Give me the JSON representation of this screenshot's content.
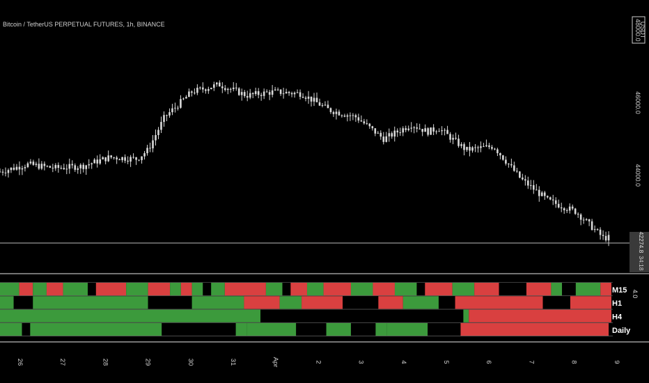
{
  "colors": {
    "background": "#000000",
    "candle": "#d9d9d9",
    "bull": "#3c9a3c",
    "bear": "#d94040",
    "neutral": "#000000",
    "separator": "#9a9a9a",
    "price_line": "#bdbdbd"
  },
  "chart_data": [
    {
      "type": "candlestick",
      "title": "Bitcoin / TetherUS PERPETUAL FUTURES, 1h, BINANCE",
      "currency_badge": "USDT",
      "y_tick_labels": [
        "48000.0",
        "46000.0",
        "44000.0"
      ],
      "ylim": [
        42000,
        48100
      ],
      "x_tick_labels": [
        "26",
        "27",
        "28",
        "29",
        "30",
        "31",
        "Apr",
        "2",
        "3",
        "4",
        "5",
        "6",
        "7",
        "8",
        "9"
      ],
      "last_price_label": "42274.8",
      "countdown_label": "34:18",
      "close_path": [
        [
          0,
          44100
        ],
        [
          1,
          44300
        ],
        [
          2,
          44200
        ],
        [
          3,
          44250
        ],
        [
          4,
          44500
        ],
        [
          5,
          44450
        ],
        [
          5.4,
          44700
        ],
        [
          6,
          45600
        ],
        [
          7,
          46300
        ],
        [
          8,
          46500
        ],
        [
          9,
          46200
        ],
        [
          10,
          46300
        ],
        [
          11,
          46250
        ],
        [
          12,
          45800
        ],
        [
          13,
          45600
        ],
        [
          14,
          45000
        ],
        [
          15,
          45400
        ],
        [
          15.6,
          45200
        ],
        [
          16,
          45300
        ],
        [
          17,
          44700
        ],
        [
          18,
          44800
        ],
        [
          19,
          43900
        ],
        [
          20,
          43300
        ],
        [
          21,
          43000
        ],
        [
          22,
          42280
        ]
      ]
    },
    {
      "type": "heatmap",
      "value_label": "4.0",
      "rows": [
        {
          "label": "M15",
          "segments": [
            [
              0,
              0.7,
              "g"
            ],
            [
              0.7,
              1.2,
              "r"
            ],
            [
              1.2,
              1.7,
              "g"
            ],
            [
              1.7,
              2.3,
              "r"
            ],
            [
              2.3,
              3.2,
              "g"
            ],
            [
              3.2,
              3.5,
              "n"
            ],
            [
              3.5,
              4.6,
              "r"
            ],
            [
              4.6,
              5.4,
              "g"
            ],
            [
              5.4,
              6.2,
              "r"
            ],
            [
              6.2,
              6.6,
              "g"
            ],
            [
              6.6,
              7.0,
              "r"
            ],
            [
              7.0,
              7.4,
              "g"
            ],
            [
              7.4,
              7.7,
              "n"
            ],
            [
              7.7,
              8.2,
              "g"
            ],
            [
              8.2,
              9.7,
              "r"
            ],
            [
              9.7,
              10.3,
              "g"
            ],
            [
              10.3,
              10.6,
              "n"
            ],
            [
              10.6,
              11.2,
              "r"
            ],
            [
              11.2,
              11.8,
              "g"
            ],
            [
              11.8,
              12.8,
              "r"
            ],
            [
              12.8,
              13.6,
              "g"
            ],
            [
              13.6,
              14.4,
              "r"
            ],
            [
              14.4,
              15.2,
              "g"
            ],
            [
              15.2,
              15.5,
              "n"
            ],
            [
              15.5,
              16.5,
              "r"
            ],
            [
              16.5,
              17.3,
              "g"
            ],
            [
              17.3,
              18.2,
              "r"
            ],
            [
              18.2,
              19.2,
              "n"
            ],
            [
              19.2,
              20.1,
              "r"
            ],
            [
              20.1,
              20.5,
              "g"
            ],
            [
              20.5,
              21.0,
              "n"
            ],
            [
              21.0,
              21.9,
              "g"
            ],
            [
              21.9,
              22.3,
              "r"
            ]
          ]
        },
        {
          "label": "H1",
          "segments": [
            [
              0,
              0.5,
              "g"
            ],
            [
              0.5,
              1.2,
              "n"
            ],
            [
              1.2,
              5.4,
              "g"
            ],
            [
              5.4,
              7.0,
              "n"
            ],
            [
              7.0,
              8.9,
              "g"
            ],
            [
              8.9,
              10.2,
              "r"
            ],
            [
              10.2,
              11.0,
              "g"
            ],
            [
              11.0,
              12.5,
              "r"
            ],
            [
              12.5,
              13.8,
              "n"
            ],
            [
              13.8,
              14.7,
              "r"
            ],
            [
              14.7,
              16.0,
              "g"
            ],
            [
              16.0,
              16.6,
              "n"
            ],
            [
              16.6,
              19.8,
              "r"
            ],
            [
              19.8,
              20.8,
              "n"
            ],
            [
              20.8,
              22.3,
              "r"
            ]
          ]
        },
        {
          "label": "H4",
          "segments": [
            [
              0,
              9.5,
              "g"
            ],
            [
              9.5,
              16.9,
              "n"
            ],
            [
              16.9,
              17.1,
              "g"
            ],
            [
              17.1,
              22.3,
              "r"
            ]
          ]
        },
        {
          "label": "Daily",
          "segments": [
            [
              0,
              0.8,
              "g"
            ],
            [
              0.8,
              1.1,
              "n"
            ],
            [
              1.1,
              5.9,
              "g"
            ],
            [
              5.9,
              8.6,
              "n"
            ],
            [
              8.6,
              9.0,
              "g"
            ],
            [
              9.0,
              10.8,
              "g"
            ],
            [
              10.8,
              11.9,
              "n"
            ],
            [
              11.9,
              12.8,
              "g"
            ],
            [
              12.8,
              13.7,
              "n"
            ],
            [
              13.7,
              14.1,
              "g"
            ],
            [
              14.1,
              15.6,
              "g"
            ],
            [
              15.6,
              16.8,
              "n"
            ],
            [
              16.8,
              22.2,
              "r"
            ]
          ]
        }
      ]
    }
  ]
}
